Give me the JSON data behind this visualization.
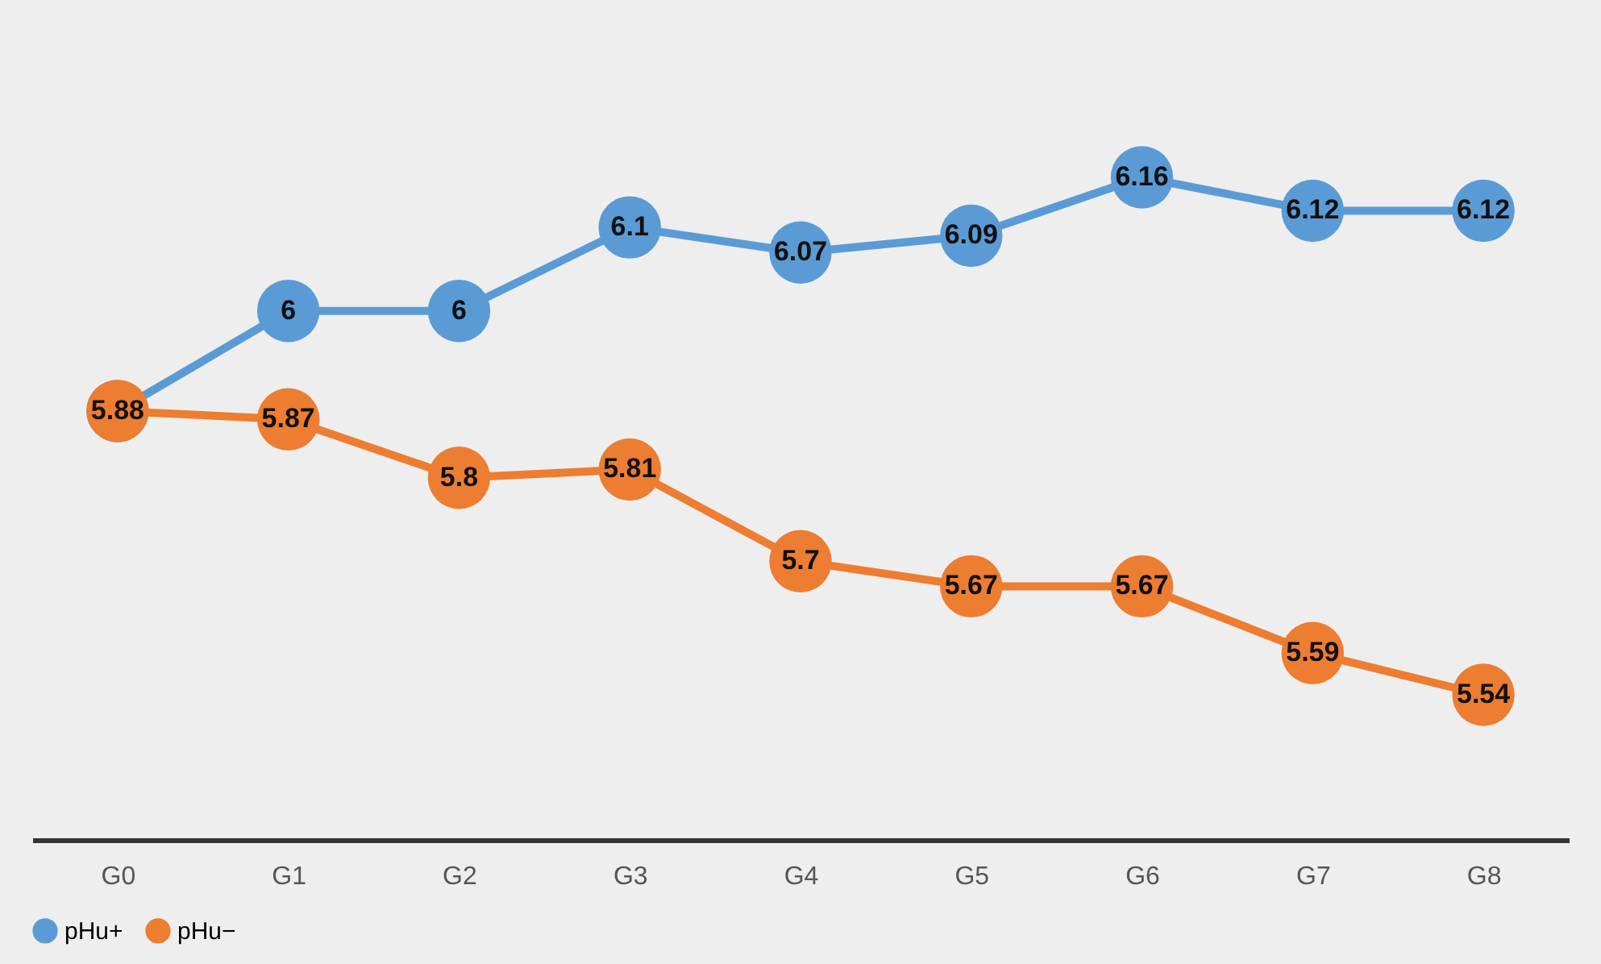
{
  "chart_data": {
    "type": "line",
    "categories": [
      "G0",
      "G1",
      "G2",
      "G3",
      "G4",
      "G5",
      "G6",
      "G7",
      "G8"
    ],
    "series": [
      {
        "name": "pHu+",
        "color": "#5b9bd5",
        "values": [
          5.88,
          6,
          6,
          6.1,
          6.07,
          6.09,
          6.16,
          6.12,
          6.12
        ],
        "value_labels": [
          null,
          "6",
          "6",
          "6.1",
          "6.07",
          "6.09",
          "6.16",
          "6.12",
          "6.12"
        ]
      },
      {
        "name": "pHu−",
        "color": "#ed7d31",
        "values": [
          5.88,
          5.87,
          5.8,
          5.81,
          5.7,
          5.67,
          5.67,
          5.59,
          5.54
        ],
        "value_labels": [
          "5.88",
          "5.87",
          "5.8",
          "5.81",
          "5.7",
          "5.67",
          "5.67",
          "5.59",
          "5.54"
        ]
      }
    ],
    "tick_labels": "x",
    "marker": "circle",
    "grid": false,
    "legend": "bottom"
  }
}
